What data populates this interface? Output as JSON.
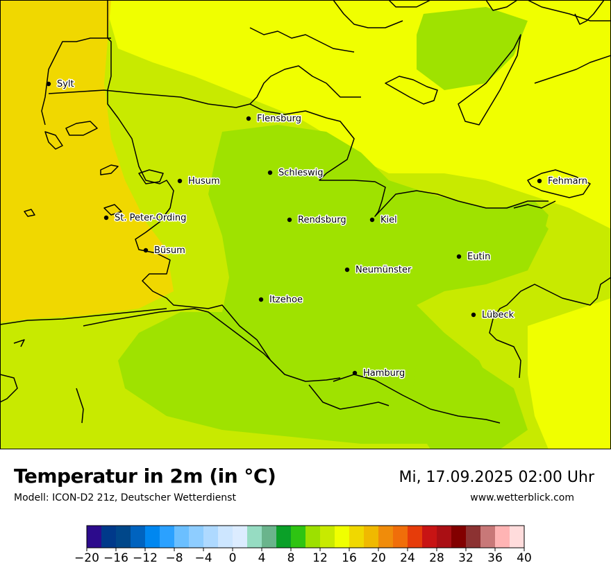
{
  "map": {
    "cities": [
      {
        "name": "Sylt"
      },
      {
        "name": "Flensburg"
      },
      {
        "name": "Schleswig"
      },
      {
        "name": "Husum"
      },
      {
        "name": "St. Peter-Ording"
      },
      {
        "name": "Rendsburg"
      },
      {
        "name": "Kiel"
      },
      {
        "name": "Fehmarn"
      },
      {
        "name": "Büsum"
      },
      {
        "name": "Eutin"
      },
      {
        "name": "Neumünster"
      },
      {
        "name": "Itzehoe"
      },
      {
        "name": "Lübeck"
      },
      {
        "name": "Hamburg"
      }
    ],
    "colors": {
      "temp_14_16": "#c8ea00",
      "temp_12_14": "#9fe200",
      "temp_16_18": "#f0ff00",
      "temp_18_20": "#f0d800",
      "coastline": "#000000"
    }
  },
  "footer": {
    "title": "Temperatur in 2m (in °C)",
    "model": "Modell: ICON-D2 21z, Deutscher Wetterdienst",
    "datetime": "Mi, 17.09.2025 02:00 Uhr",
    "website": "www.wetterblick.com"
  },
  "colorscale": {
    "tick_labels": [
      "−20",
      "−16",
      "−12",
      "−8",
      "−4",
      "0",
      "4",
      "8",
      "12",
      "16",
      "20",
      "24",
      "28",
      "32",
      "36",
      "40"
    ],
    "colors": [
      "#2c0b8c",
      "#00398a",
      "#00478a",
      "#0063bf",
      "#0087f0",
      "#2ba1ff",
      "#6bbfff",
      "#8ecdff",
      "#aed9ff",
      "#cde6ff",
      "#dcecff",
      "#96dcc2",
      "#6ab48c",
      "#0aa028",
      "#2ec412",
      "#9de000",
      "#c8ea00",
      "#f0ff00",
      "#f0d800",
      "#f0b900",
      "#f08c0a",
      "#f06e0a",
      "#e63c0a",
      "#c81414",
      "#aa0f14",
      "#820000",
      "#8c3232",
      "#c87878",
      "#ffb4b4",
      "#ffdcdc"
    ]
  }
}
